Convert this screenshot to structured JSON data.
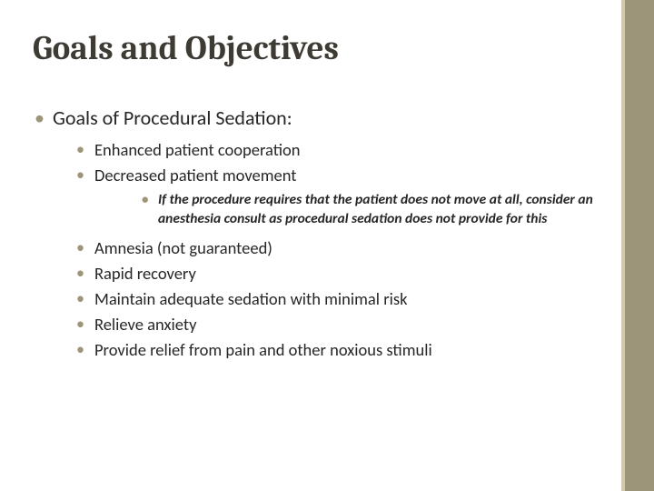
{
  "colors": {
    "accent": "#9d9579",
    "accent_light": "#d0c9b0",
    "title_text": "#3d3b33",
    "body_text": "#262626",
    "background": "#ffffff"
  },
  "typography": {
    "title_font": "Cambria, Georgia, serif",
    "body_font": "Calibri, Segoe UI, Arial, sans-serif",
    "title_size_pt": 28,
    "lvl1_size_pt": 17,
    "lvl2_size_pt": 14,
    "lvl3_size_pt": 12
  },
  "title": "Goals and Objectives",
  "lvl1": {
    "item0": "Goals of Procedural Sedation:"
  },
  "lvl2_a": {
    "item0": "Enhanced patient cooperation",
    "item1": "Decreased patient movement"
  },
  "lvl3": {
    "item0": "If the procedure requires that the patient does not move at all, consider an anesthesia consult as procedural sedation does not provide for this"
  },
  "lvl2_b": {
    "item0": "Amnesia (not guaranteed)",
    "item1": "Rapid recovery",
    "item2": "Maintain adequate sedation with minimal risk",
    "item3": "Relieve anxiety",
    "item4": "Provide relief from pain and other noxious stimuli"
  }
}
